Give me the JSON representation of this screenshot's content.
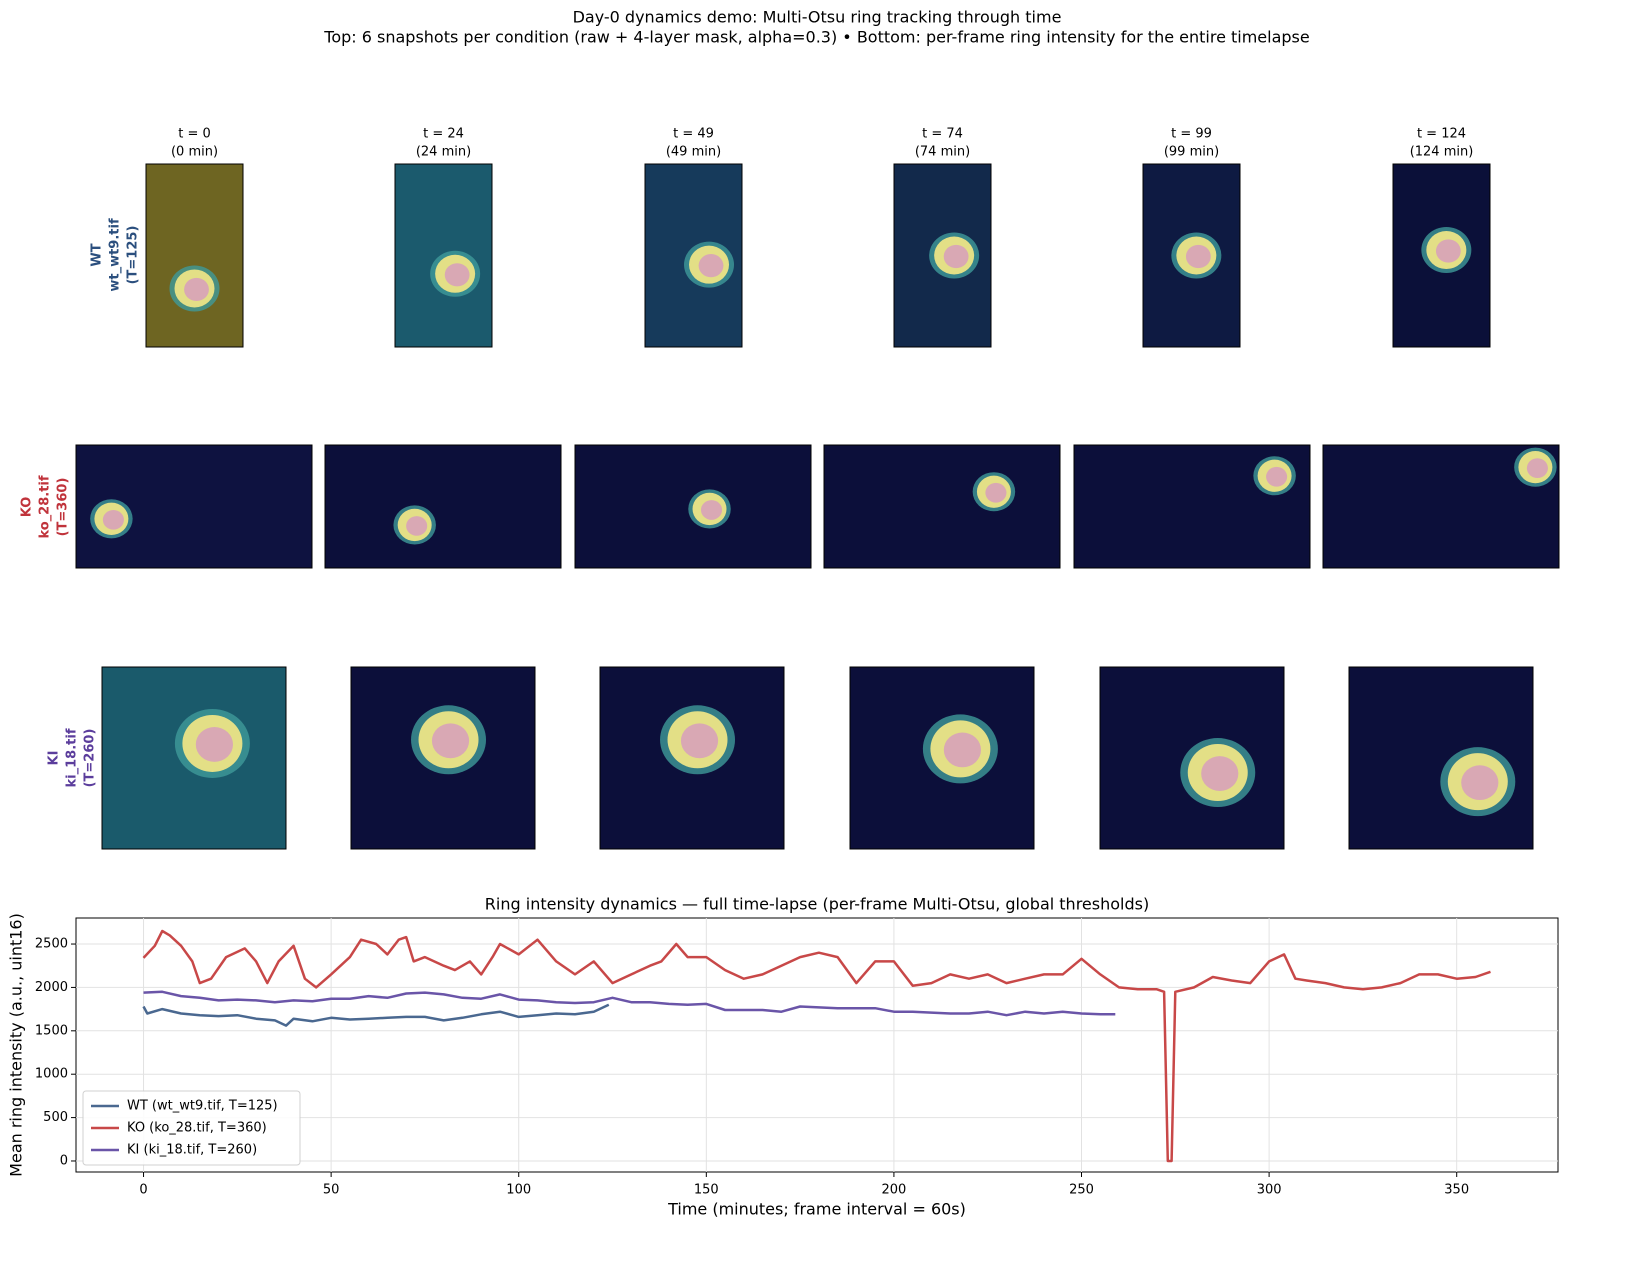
{
  "title": "Day-0 dynamics demo: Multi-Otsu ring tracking through time",
  "subtitle": "Top: 6 snapshots per condition (raw + 4-layer mask, alpha=0.3)  •  Bottom: per-frame ring intensity for the entire timelapse",
  "column_titles": [
    {
      "frame": "t = 0",
      "time": "(0 min)"
    },
    {
      "frame": "t = 24",
      "time": "(24 min)"
    },
    {
      "frame": "t = 49",
      "time": "(49 min)"
    },
    {
      "frame": "t = 74",
      "time": "(74 min)"
    },
    {
      "frame": "t = 99",
      "time": "(99 min)"
    },
    {
      "frame": "t = 124",
      "time": "(124 min)"
    }
  ],
  "rows": [
    {
      "condition": "WT",
      "file": "wt_wt9.tif",
      "frames": "(T=125)",
      "color": "#2b4f7e"
    },
    {
      "condition": "KO",
      "file": "ko_28.tif",
      "frames": "(T=360)",
      "color": "#c0333b"
    },
    {
      "condition": "KI",
      "file": "ki_18.tif",
      "frames": "(T=260)",
      "color": "#5b3d9c"
    }
  ],
  "chart_data": {
    "type": "line",
    "title": "Ring intensity dynamics — full time-lapse (per-frame Multi-Otsu, global thresholds)",
    "x_label": "Time (minutes; frame interval = 60s)",
    "y_label": "Mean ring intensity (a.u., uint16)",
    "xlim": [
      -18,
      377
    ],
    "ylim": [
      -127,
      2800
    ],
    "xticks": [
      0,
      50,
      100,
      150,
      200,
      250,
      300,
      350
    ],
    "yticks": [
      0,
      500,
      1000,
      1500,
      2000,
      2500
    ],
    "grid": true,
    "legend": "lower left",
    "series": [
      {
        "name": "WT (wt_wt9.tif, T=125)",
        "color": "#4a6890",
        "x": [
          0,
          1,
          5,
          10,
          15,
          20,
          25,
          30,
          35,
          38,
          40,
          45,
          50,
          55,
          60,
          65,
          70,
          75,
          80,
          85,
          90,
          95,
          100,
          105,
          110,
          115,
          120,
          124
        ],
        "values": [
          1780,
          1700,
          1750,
          1700,
          1680,
          1670,
          1680,
          1640,
          1620,
          1560,
          1640,
          1610,
          1650,
          1630,
          1640,
          1650,
          1660,
          1660,
          1620,
          1650,
          1690,
          1720,
          1660,
          1680,
          1700,
          1690,
          1720,
          1800
        ]
      },
      {
        "name": "KO (ko_28.tif, T=360)",
        "color": "#c84848",
        "x": [
          0,
          3,
          5,
          7,
          10,
          13,
          15,
          18,
          22,
          27,
          30,
          33,
          36,
          40,
          43,
          46,
          50,
          55,
          58,
          62,
          65,
          68,
          70,
          72,
          75,
          80,
          83,
          87,
          90,
          93,
          95,
          100,
          105,
          110,
          115,
          120,
          125,
          130,
          135,
          138,
          142,
          145,
          150,
          155,
          160,
          165,
          170,
          175,
          180,
          185,
          190,
          195,
          200,
          205,
          210,
          215,
          220,
          225,
          230,
          235,
          240,
          245,
          250,
          255,
          260,
          265,
          270,
          272,
          273,
          274,
          275,
          280,
          285,
          290,
          295,
          300,
          304,
          307,
          310,
          315,
          320,
          325,
          330,
          335,
          340,
          345,
          350,
          355,
          359
        ],
        "values": [
          2340,
          2480,
          2650,
          2600,
          2480,
          2300,
          2050,
          2100,
          2350,
          2450,
          2300,
          2050,
          2300,
          2480,
          2100,
          2000,
          2150,
          2350,
          2550,
          2500,
          2380,
          2550,
          2580,
          2300,
          2350,
          2250,
          2200,
          2300,
          2150,
          2350,
          2500,
          2380,
          2550,
          2300,
          2150,
          2300,
          2050,
          2150,
          2250,
          2300,
          2500,
          2350,
          2350,
          2200,
          2100,
          2150,
          2250,
          2350,
          2400,
          2350,
          2050,
          2300,
          2300,
          2020,
          2050,
          2150,
          2100,
          2150,
          2050,
          2100,
          2150,
          2150,
          2330,
          2150,
          2000,
          1980,
          1980,
          1950,
          0,
          0,
          1950,
          2000,
          2120,
          2080,
          2050,
          2300,
          2380,
          2100,
          2080,
          2050,
          2000,
          1980,
          2000,
          2050,
          2150,
          2150,
          2100,
          2120,
          2180
        ]
      },
      {
        "name": "KI (ki_18.tif, T=260)",
        "color": "#6a55a8",
        "x": [
          0,
          5,
          10,
          15,
          20,
          25,
          30,
          35,
          40,
          45,
          50,
          55,
          60,
          65,
          70,
          75,
          80,
          85,
          90,
          95,
          100,
          105,
          110,
          115,
          120,
          125,
          130,
          135,
          140,
          145,
          150,
          155,
          160,
          165,
          170,
          175,
          180,
          185,
          190,
          195,
          200,
          205,
          210,
          215,
          220,
          225,
          230,
          235,
          240,
          245,
          250,
          255,
          259
        ],
        "values": [
          1940,
          1950,
          1900,
          1880,
          1850,
          1860,
          1850,
          1830,
          1850,
          1840,
          1870,
          1870,
          1900,
          1880,
          1930,
          1940,
          1920,
          1880,
          1870,
          1920,
          1860,
          1850,
          1830,
          1820,
          1830,
          1880,
          1830,
          1830,
          1810,
          1800,
          1810,
          1740,
          1740,
          1740,
          1720,
          1780,
          1770,
          1760,
          1760,
          1760,
          1720,
          1720,
          1710,
          1700,
          1700,
          1720,
          1680,
          1720,
          1700,
          1720,
          1700,
          1690,
          1690
        ]
      }
    ]
  }
}
